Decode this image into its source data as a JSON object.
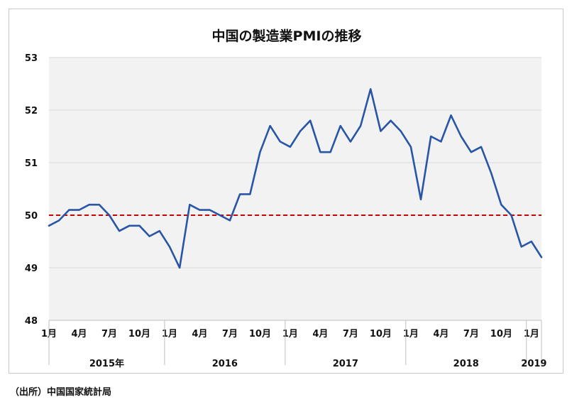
{
  "chart_data": {
    "type": "line",
    "title": "中国の製造業PMIの推移",
    "xlabel": "",
    "ylabel": "",
    "ylim": [
      48,
      53
    ],
    "yticks": [
      "48",
      "49",
      "50",
      "51",
      "52",
      "53"
    ],
    "grid": true,
    "month_tick_labels": [
      "1月",
      "4月",
      "7月",
      "10月",
      "1月",
      "4月",
      "7月",
      "10月",
      "1月",
      "4月",
      "7月",
      "10月",
      "1月",
      "4月",
      "7月",
      "10月",
      "1月"
    ],
    "year_labels": [
      "2015年",
      "2016",
      "2017",
      "2018",
      "2019"
    ],
    "x": [
      "2015-01",
      "2015-02",
      "2015-03",
      "2015-04",
      "2015-05",
      "2015-06",
      "2015-07",
      "2015-08",
      "2015-09",
      "2015-10",
      "2015-11",
      "2015-12",
      "2016-01",
      "2016-02",
      "2016-03",
      "2016-04",
      "2016-05",
      "2016-06",
      "2016-07",
      "2016-08",
      "2016-09",
      "2016-10",
      "2016-11",
      "2016-12",
      "2017-01",
      "2017-02",
      "2017-03",
      "2017-04",
      "2017-05",
      "2017-06",
      "2017-07",
      "2017-08",
      "2017-09",
      "2017-10",
      "2017-11",
      "2017-12",
      "2018-01",
      "2018-02",
      "2018-03",
      "2018-04",
      "2018-05",
      "2018-06",
      "2018-07",
      "2018-08",
      "2018-09",
      "2018-10",
      "2018-11",
      "2018-12",
      "2019-01",
      "2019-02"
    ],
    "series": [
      {
        "color": "#2855a6",
        "values": [
          49.8,
          49.9,
          50.1,
          50.1,
          50.2,
          50.2,
          50.0,
          49.7,
          49.8,
          49.8,
          49.6,
          49.7,
          49.4,
          49.0,
          50.2,
          50.1,
          50.1,
          50.0,
          49.9,
          50.4,
          50.4,
          51.2,
          51.7,
          51.4,
          51.3,
          51.6,
          51.8,
          51.2,
          51.2,
          51.7,
          51.4,
          51.7,
          52.4,
          51.6,
          51.8,
          51.6,
          51.3,
          50.3,
          51.5,
          51.4,
          51.9,
          51.5,
          51.2,
          51.3,
          50.8,
          50.2,
          50.0,
          49.4,
          49.5,
          49.2
        ]
      }
    ],
    "reference_line": {
      "value": 50,
      "color": "#cc0000",
      "style": "dashed"
    }
  },
  "source_note": "（出所）中国国家統計局",
  "colors": {
    "plot_bg": "#f2f2f2",
    "grid": "#d9d9d9",
    "axis": "#bfbfbf"
  }
}
